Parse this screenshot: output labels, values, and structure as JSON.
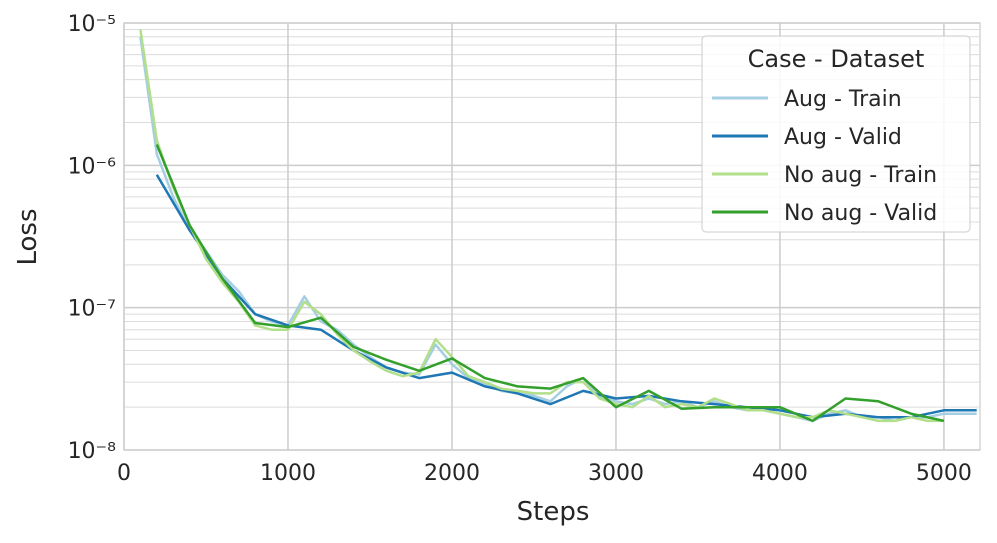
{
  "chart_data": {
    "type": "line",
    "xlabel": "Steps",
    "ylabel": "Loss",
    "xlim": [
      0,
      5220
    ],
    "xticks": [
      0,
      1000,
      2000,
      3000,
      4000,
      5000
    ],
    "ylim": [
      1e-08,
      1e-05
    ],
    "ylog": true,
    "grid": true,
    "yticks": [
      {
        "value": 1e-08,
        "label": "10⁻⁸"
      },
      {
        "value": 1e-07,
        "label": "10⁻⁷"
      },
      {
        "value": 1e-06,
        "label": "10⁻⁶"
      },
      {
        "value": 1e-05,
        "label": "10⁻⁵"
      }
    ],
    "yminorticks": [
      2e-08,
      3e-08,
      4e-08,
      5e-08,
      6e-08,
      7e-08,
      8e-08,
      9e-08,
      2e-07,
      3e-07,
      4e-07,
      5e-07,
      6e-07,
      7e-07,
      8e-07,
      9e-07,
      2e-06,
      3e-06,
      4e-06,
      5e-06,
      6e-06,
      7e-06,
      8e-06,
      9e-06
    ],
    "legend_title": "Case - Dataset",
    "legend_loc": "upper right",
    "series": [
      {
        "name": "Aug - Train",
        "color": "#a6cee3",
        "x": [
          100,
          200,
          300,
          400,
          500,
          600,
          700,
          800,
          900,
          1000,
          1100,
          1200,
          1300,
          1400,
          1500,
          1600,
          1700,
          1800,
          1900,
          2000,
          2100,
          2200,
          2300,
          2400,
          2500,
          2600,
          2700,
          2800,
          2900,
          3000,
          3100,
          3200,
          3300,
          3400,
          3500,
          3600,
          3700,
          3800,
          3900,
          4000,
          4100,
          4200,
          4300,
          4400,
          4500,
          4600,
          4700,
          4800,
          4900,
          5000,
          5100,
          5200
        ],
        "values": [
          8e-06,
          1.2e-06,
          6e-07,
          3.5e-07,
          2.5e-07,
          1.7e-07,
          1.3e-07,
          9e-08,
          8e-08,
          7.5e-08,
          1.2e-07,
          8e-08,
          7e-08,
          5.5e-08,
          4.5e-08,
          3.8e-08,
          3.5e-08,
          3.4e-08,
          5.5e-08,
          4e-08,
          3.2e-08,
          2.9e-08,
          2.6e-08,
          2.5e-08,
          2.4e-08,
          2.2e-08,
          2.8e-08,
          3.2e-08,
          2.4e-08,
          2.2e-08,
          2.1e-08,
          2.3e-08,
          2.1e-08,
          2.2e-08,
          2e-08,
          2.2e-08,
          2e-08,
          1.9e-08,
          1.9e-08,
          1.8e-08,
          1.7e-08,
          1.6e-08,
          1.8e-08,
          1.9e-08,
          1.7e-08,
          1.7e-08,
          1.6e-08,
          1.7e-08,
          1.7e-08,
          1.8e-08,
          1.8e-08,
          1.8e-08
        ]
      },
      {
        "name": "Aug - Valid",
        "color": "#1f78b4",
        "x": [
          200,
          400,
          600,
          800,
          1000,
          1200,
          1400,
          1600,
          1800,
          2000,
          2200,
          2400,
          2600,
          2800,
          3000,
          3200,
          3400,
          3600,
          3800,
          4000,
          4200,
          4400,
          4600,
          4800,
          5000,
          5200
        ],
        "values": [
          8.6e-07,
          3.5e-07,
          1.6e-07,
          9e-08,
          7.5e-08,
          7e-08,
          5e-08,
          3.8e-08,
          3.2e-08,
          3.5e-08,
          2.8e-08,
          2.5e-08,
          2.1e-08,
          2.6e-08,
          2.3e-08,
          2.4e-08,
          2.2e-08,
          2.1e-08,
          2e-08,
          1.9e-08,
          1.7e-08,
          1.8e-08,
          1.7e-08,
          1.7e-08,
          1.9e-08,
          1.9e-08
        ]
      },
      {
        "name": "No aug - Train",
        "color": "#b2df8a",
        "x": [
          100,
          200,
          300,
          400,
          500,
          600,
          700,
          800,
          900,
          1000,
          1100,
          1200,
          1300,
          1400,
          1500,
          1600,
          1700,
          1800,
          1900,
          2000,
          2100,
          2200,
          2300,
          2400,
          2500,
          2600,
          2700,
          2800,
          2900,
          3000,
          3100,
          3200,
          3300,
          3400,
          3500,
          3600,
          3700,
          3800,
          3900,
          4000,
          4100,
          4200,
          4300,
          4400,
          4500,
          4600,
          4700,
          4800,
          4900,
          5000
        ],
        "values": [
          9e-06,
          1.5e-06,
          7e-07,
          3.8e-07,
          2.2e-07,
          1.5e-07,
          1.1e-07,
          7.5e-08,
          7e-08,
          7e-08,
          1.1e-07,
          9e-08,
          6.5e-08,
          5e-08,
          4.2e-08,
          3.6e-08,
          3.3e-08,
          3.5e-08,
          6e-08,
          4.5e-08,
          3.3e-08,
          3e-08,
          2.7e-08,
          2.6e-08,
          2.5e-08,
          2.5e-08,
          3e-08,
          3e-08,
          2.3e-08,
          2.1e-08,
          2e-08,
          2.4e-08,
          2e-08,
          2.1e-08,
          2e-08,
          2.3e-08,
          2.1e-08,
          1.9e-08,
          1.9e-08,
          1.8e-08,
          1.7e-08,
          1.7e-08,
          1.9e-08,
          1.8e-08,
          1.7e-08,
          1.6e-08,
          1.6e-08,
          1.7e-08,
          1.6e-08,
          1.6e-08
        ]
      },
      {
        "name": "No aug - Valid",
        "color": "#33a02c",
        "x": [
          200,
          400,
          600,
          800,
          1000,
          1200,
          1400,
          1600,
          1800,
          2000,
          2200,
          2400,
          2600,
          2800,
          3000,
          3200,
          3400,
          3600,
          3800,
          4000,
          4200,
          4400,
          4600,
          4800,
          5000
        ],
        "values": [
          1.4e-06,
          3.8e-07,
          1.6e-07,
          7.8e-08,
          7.3e-08,
          8.5e-08,
          5.3e-08,
          4.3e-08,
          3.6e-08,
          4.4e-08,
          3.2e-08,
          2.8e-08,
          2.7e-08,
          3.2e-08,
          2e-08,
          2.6e-08,
          1.95e-08,
          2e-08,
          2e-08,
          2e-08,
          1.6e-08,
          2.3e-08,
          2.2e-08,
          1.8e-08,
          1.6e-08
        ]
      }
    ]
  }
}
